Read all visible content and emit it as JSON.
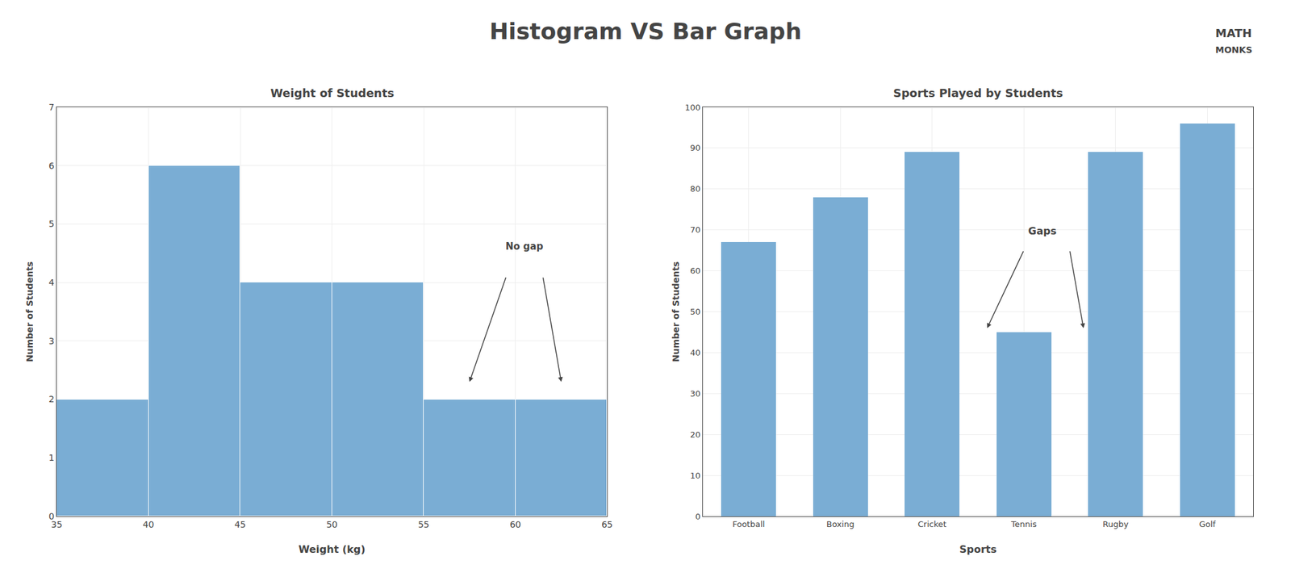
{
  "title": "Histogram VS Bar Graph",
  "annotations": [
    "MATH",
    "MONKS"
  ],
  "chart_data": [
    {
      "type": "histogram",
      "title": "Weight of Students",
      "x_label": "Weight (kg)",
      "y_label": "Number of Students",
      "bins": [
        35,
        40,
        45,
        50,
        55,
        60,
        65
      ],
      "values": [
        2,
        6,
        4,
        4,
        2,
        2
      ],
      "color": "#7aadd4",
      "xlim": [
        35,
        65
      ],
      "xticks": [
        35,
        40,
        45,
        50,
        55,
        60,
        65
      ],
      "ylim": [
        0,
        7
      ],
      "yticks": [
        0,
        1,
        2,
        3,
        4,
        5,
        6,
        7
      ],
      "grid": true,
      "annotations": [
        "No gap"
      ]
    },
    {
      "type": "bar",
      "title": "Sports Played by Students",
      "x_label": "Sports",
      "y_label": "Number of Students",
      "categories": [
        "Football",
        "Boxing",
        "Cricket",
        "Tennis",
        "Rugby",
        "Golf"
      ],
      "values": [
        67,
        78,
        89,
        45,
        89,
        96
      ],
      "color": "#7aadd4",
      "ylim": [
        0,
        100
      ],
      "yticks": [
        0,
        10,
        20,
        30,
        40,
        50,
        60,
        70,
        80,
        90,
        100
      ],
      "grid": true,
      "annotations": [
        "Gaps"
      ]
    }
  ]
}
